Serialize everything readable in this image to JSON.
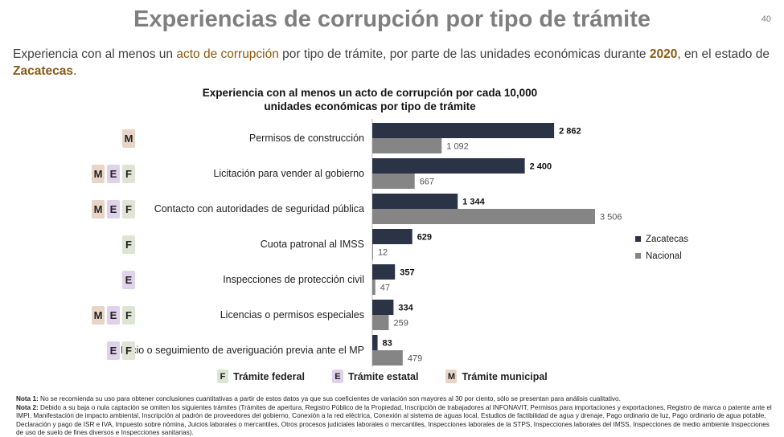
{
  "slide": {
    "title": "Experiencias de corrupción por tipo de trámite",
    "page_number": "40"
  },
  "subtitle": {
    "part1": "Experiencia con al menos un ",
    "highlight1": "acto de corrupción",
    "part2": " por tipo de trámite, por parte de las unidades económicas durante ",
    "highlight2": "2020",
    "part3": ", en el estado de ",
    "highlight3": "Zacatecas",
    "part4": "."
  },
  "chart_data": {
    "type": "bar",
    "orientation": "horizontal",
    "title_line1": "Experiencia con al menos un acto de corrupción por cada 10,000",
    "title_line2": "unidades económicas por tipo de trámite",
    "categories": [
      "Permisos de construcción",
      "Licitación para vender al gobierno",
      "Contacto con autoridades de seguridad pública",
      "Cuota patronal al IMSS",
      "Inspecciones de protección civil",
      "Licencias o permisos especiales",
      "Inicio o seguimiento de averiguación previa ante el MP"
    ],
    "series": [
      {
        "name": "Zacatecas",
        "color": "#2b3347",
        "values": [
          2862,
          2400,
          1344,
          629,
          357,
          334,
          83
        ],
        "labels": [
          "2 862",
          "2 400",
          "1 344",
          "629",
          "357",
          "334",
          "83"
        ]
      },
      {
        "name": "Nacional",
        "color": "#858585",
        "values": [
          1092,
          667,
          3506,
          12,
          47,
          259,
          479
        ],
        "labels": [
          "1 092",
          "667",
          "3 506",
          "12",
          "47",
          "259",
          "479"
        ]
      }
    ],
    "xlim": [
      0,
      3506
    ],
    "legend_position": "right",
    "grid": false
  },
  "tramite_badges": [
    [
      "M"
    ],
    [
      "M",
      "E",
      "F"
    ],
    [
      "M",
      "E",
      "F"
    ],
    [
      "F"
    ],
    [
      "E"
    ],
    [
      "M",
      "E",
      "F"
    ],
    [
      "E",
      "F"
    ]
  ],
  "tramite_key": [
    {
      "letter": "F",
      "label": "Trámite federal"
    },
    {
      "letter": "E",
      "label": "Trámite estatal"
    },
    {
      "letter": "M",
      "label": "Trámite municipal"
    }
  ],
  "notes": {
    "nota1_label": "Nota 1:",
    "nota1_text": " No se recomienda su uso para obtener conclusiones cuantitativas a partir de estos datos ya que sus coeficientes de variación son mayores al 30 por ciento, sólo se presentan para análisis cualitativo.",
    "nota2_label": "Nota 2:",
    "nota2_text": " Debido a su baja o nula captación se omiten los siguientes trámites (Trámites de apertura, Registro Público de la Propiedad, Inscripción de trabajadores al INFONAVIT, Permisos para importaciones y exportaciones, Registro de marca o patente ante el IMPI, Manifestación de impacto ambiental, Inscripción al padrón de proveedores del gobierno, Conexión a la red eléctrica, Conexión al sistema de aguas local, Estudios de factibilidad de agua y drenaje, Pago ordinario de luz, Pago ordinario de agua potable, Declaración y pago de ISR e IVA, Impuesto sobre nómina, Juicios laborales o mercantiles, Otros procesos judiciales laborales o mercantiles, Inspecciones laborales de la STPS, Inspecciones laborales del IMSS, Inspecciones de medio ambiente Inspecciones de uso de suelo de fines diversos e Inspecciones sanitarias)."
  }
}
